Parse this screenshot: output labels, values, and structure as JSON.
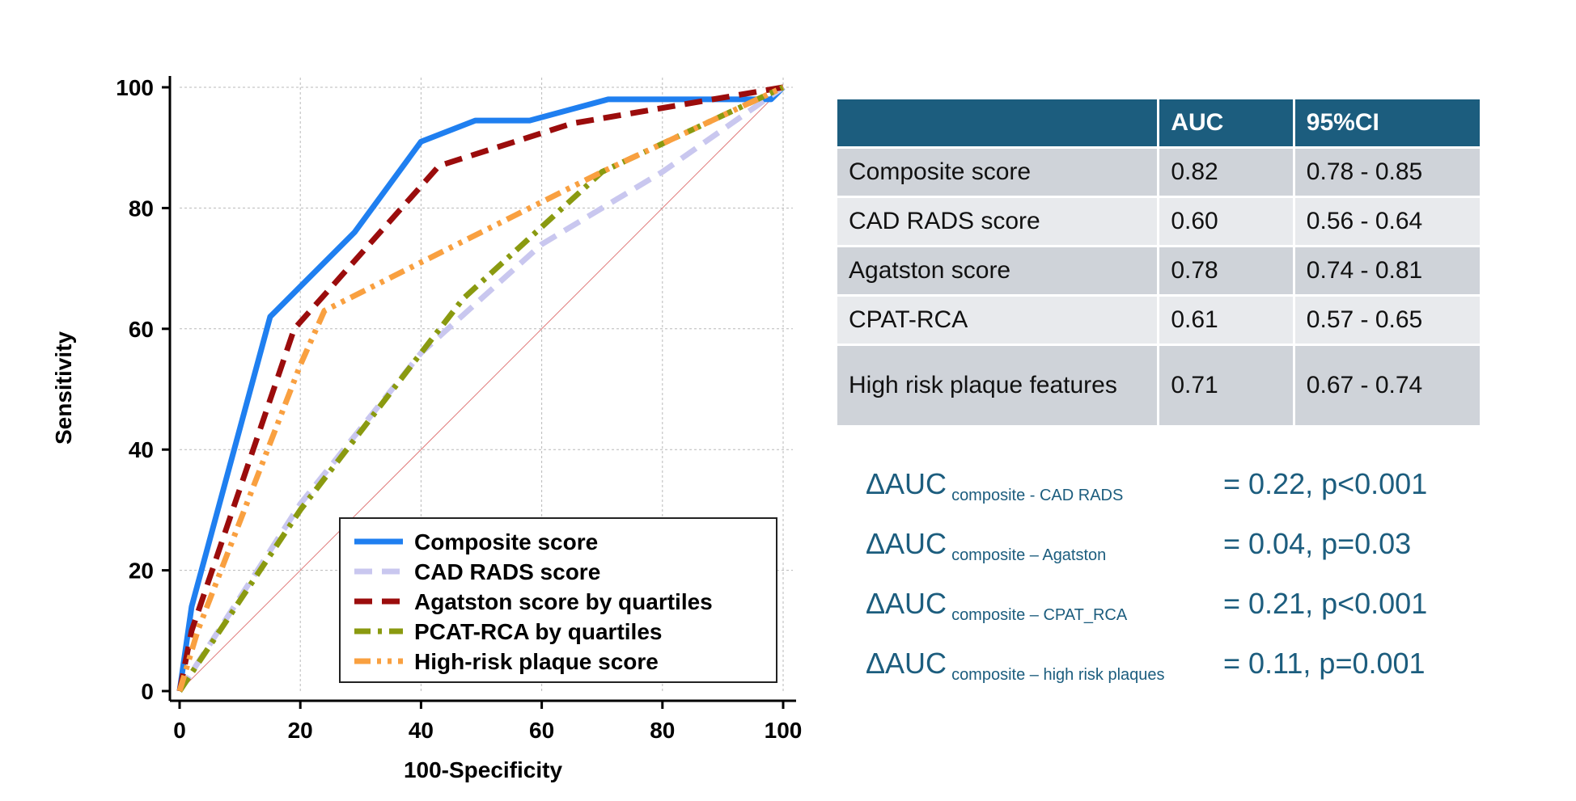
{
  "chart_data": {
    "type": "line",
    "xlabel": "100-Specificity",
    "ylabel": "Sensitivity",
    "xlim": [
      0,
      100
    ],
    "ylim": [
      0,
      100
    ],
    "xticks": [
      "0",
      "20",
      "40",
      "60",
      "80",
      "100"
    ],
    "yticks": [
      "0",
      "20",
      "40",
      "60",
      "80",
      "100"
    ],
    "grid": true,
    "legend_position": "bottom-right",
    "series": [
      {
        "name": "Composite score",
        "color": "#1f7ff0",
        "dash": "solid",
        "x": [
          0,
          2,
          15,
          20,
          29,
          40,
          49,
          58,
          71,
          98,
          100
        ],
        "y": [
          0,
          14,
          62,
          67,
          76,
          91,
          94.5,
          94.5,
          98,
          98,
          100
        ]
      },
      {
        "name": "CAD RADS score",
        "color": "#c9c7ef",
        "dash": "dashed",
        "x": [
          0,
          20,
          40,
          60,
          80,
          100
        ],
        "y": [
          0,
          31,
          56,
          74,
          86,
          100
        ]
      },
      {
        "name": "Agatston score by quartiles",
        "color": "#9b0c0c",
        "dash": "dashed",
        "x": [
          0,
          2,
          19,
          43,
          65,
          100
        ],
        "y": [
          0,
          10,
          60,
          87,
          94,
          100
        ]
      },
      {
        "name": "PCAT-RCA by quartiles",
        "color": "#8a9a10",
        "dash": "dashdot",
        "x": [
          0,
          2,
          20,
          40,
          47,
          70,
          100
        ],
        "y": [
          0,
          3,
          30,
          56,
          65,
          86,
          100
        ]
      },
      {
        "name": "High-risk plaque score",
        "color": "#f9a040",
        "dash": "dashdotdot",
        "x": [
          0,
          3,
          20,
          24,
          40,
          70,
          100
        ],
        "y": [
          0,
          10,
          54,
          63,
          71,
          86,
          100
        ]
      }
    ],
    "reference_line": {
      "x": [
        0,
        100
      ],
      "y": [
        0,
        100
      ],
      "color": "#e07a7a"
    }
  },
  "table": {
    "headers": [
      "",
      "AUC",
      "95%CI"
    ],
    "rows": [
      [
        "Composite score",
        "0.82",
        "0.78 - 0.85"
      ],
      [
        "CAD RADS score",
        "0.60",
        "0.56 - 0.64"
      ],
      [
        "Agatston score",
        "0.78",
        "0.74 - 0.81"
      ],
      [
        "CPAT-RCA",
        "0.61",
        "0.57 - 0.65"
      ],
      [
        "High risk plaque features",
        "0.71",
        "0.67 - 0.74"
      ]
    ]
  },
  "deltas": [
    {
      "main": "ΔAUC",
      "sub": "composite - CAD RADS",
      "value": "= 0.22, p<0.001"
    },
    {
      "main": "ΔAUC",
      "sub": "composite – Agatston",
      "value": "= 0.04, p=0.03"
    },
    {
      "main": "ΔAUC",
      "sub": "composite – CPAT_RCA",
      "value": "= 0.21, p<0.001"
    },
    {
      "main": "ΔAUC",
      "sub": "composite – high risk plaques",
      "value": "= 0.11, p=0.001"
    }
  ]
}
